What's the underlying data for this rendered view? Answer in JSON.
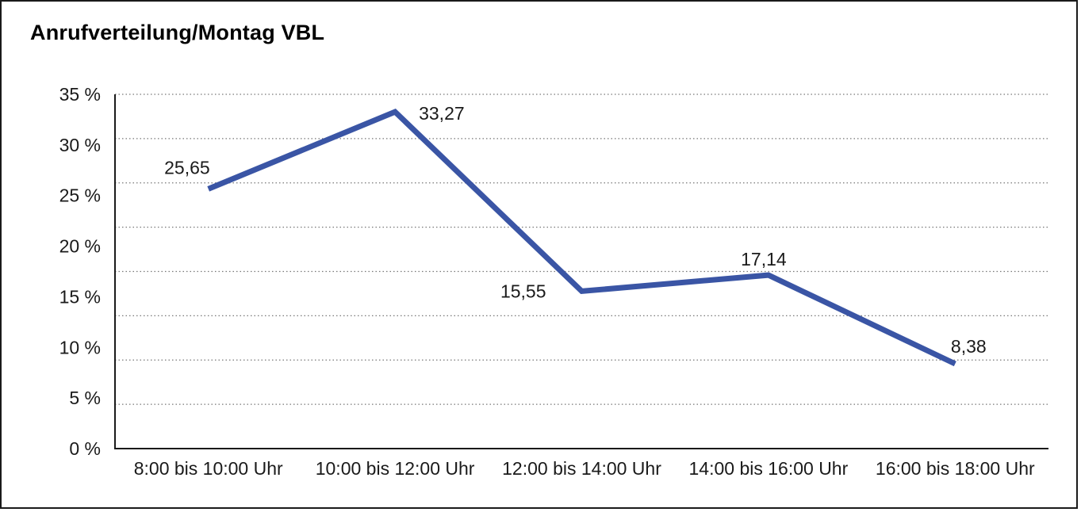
{
  "frame": {
    "background": "#ffffff",
    "border_color": "#1a1a1a"
  },
  "chart_data": {
    "type": "line",
    "title": "Anrufverteilung/Montag VBL",
    "categories": [
      "8:00 bis 10:00 Uhr",
      "10:00 bis 12:00 Uhr",
      "12:00 bis 14:00 Uhr",
      "14:00 bis 16:00 Uhr",
      "16:00 bis 18:00 Uhr"
    ],
    "series": [
      {
        "values": [
          25.65,
          33.27,
          15.55,
          17.14,
          8.38
        ],
        "point_labels": [
          "25,65",
          "33,27",
          "15,55",
          "17,14",
          "8,38"
        ],
        "color": "#3A55A5",
        "line_width": 7
      }
    ],
    "ylim": [
      0,
      35
    ],
    "ytick_step": 5,
    "ytick_labels": [
      "0 %",
      "5 %",
      "10 %",
      "15 %",
      "20 %",
      "25 %",
      "30 %",
      "35 %"
    ],
    "xlabel": "",
    "ylabel": "",
    "grid": "horizontal-dotted",
    "gridline_count": 8,
    "grid_color": "#777777",
    "axis_color": "#1a1a1a",
    "text_color": "#1a1a1a",
    "legend": "none"
  }
}
